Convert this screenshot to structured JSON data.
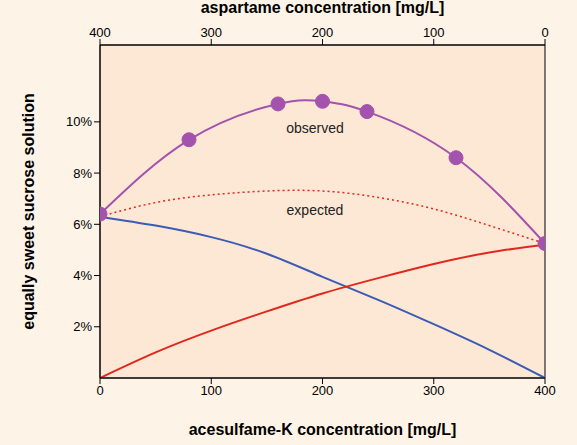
{
  "chart_data": {
    "type": "line",
    "x_label": "acesulfame-K concentration [mg/L]",
    "x2_label": "aspartame concentration [mg/L]",
    "y_label": "equally sweet sucrose solution",
    "xlim": [
      0,
      400
    ],
    "xticks": [
      0,
      100,
      200,
      300,
      400
    ],
    "x2lim": [
      400,
      0
    ],
    "x2ticks": [
      400,
      300,
      200,
      100,
      0
    ],
    "ylim": [
      0,
      13
    ],
    "yticks": [
      {
        "value": 2,
        "label": "2%"
      },
      {
        "value": 4,
        "label": "4%"
      },
      {
        "value": 6,
        "label": "6%"
      },
      {
        "value": 8,
        "label": "8%"
      },
      {
        "value": 10,
        "label": "10%"
      }
    ],
    "grid": false,
    "series": [
      {
        "name": "observed",
        "color": "#a352ad",
        "marker": "circle",
        "line_style": "solid",
        "x": [
          0,
          80,
          160,
          200,
          240,
          320,
          400
        ],
        "values": [
          6.4,
          9.3,
          10.7,
          10.8,
          10.4,
          8.6,
          5.25
        ]
      },
      {
        "name": "expected",
        "color": "#e0281e",
        "marker": "none",
        "line_style": "dotted",
        "x": [
          0,
          50,
          100,
          150,
          200,
          250,
          300,
          350,
          400
        ],
        "values": [
          6.3,
          6.85,
          7.15,
          7.3,
          7.3,
          7.05,
          6.6,
          5.95,
          5.25
        ]
      },
      {
        "color": "#3b5bb5",
        "marker": "none",
        "line_style": "solid",
        "axis": "x2",
        "x": [
          400,
          350,
          300,
          250,
          200,
          150,
          100,
          50,
          0
        ],
        "values": [
          6.3,
          5.95,
          5.5,
          4.85,
          3.95,
          3.05,
          2.1,
          1.1,
          0
        ]
      },
      {
        "color": "#e0281e",
        "marker": "none",
        "line_style": "solid",
        "x": [
          0,
          50,
          100,
          150,
          200,
          250,
          300,
          350,
          400
        ],
        "values": [
          0,
          1.0,
          1.85,
          2.6,
          3.3,
          3.9,
          4.45,
          4.9,
          5.2
        ]
      }
    ]
  }
}
